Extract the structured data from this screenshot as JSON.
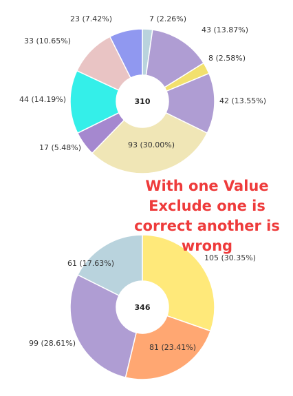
{
  "chart_data": [
    {
      "type": "donut",
      "center_label": "310",
      "slices": [
        {
          "value": 7,
          "label": "7 (2.26%)",
          "color": "#b9d3dd"
        },
        {
          "value": 43,
          "label": "43 (13.87%)",
          "color": "#af9dd3"
        },
        {
          "value": 8,
          "label": "8 (2.58%)",
          "color": "#f2e06d"
        },
        {
          "value": 42,
          "label": "42 (13.55%)",
          "color": "#af9dd3"
        },
        {
          "value": 93,
          "label": "93 (30.00%)",
          "color": "#f0e6b6"
        },
        {
          "value": 17,
          "label": "17 (5.48%)",
          "color": "#a588cf"
        },
        {
          "value": 44,
          "label": "44 (14.19%)",
          "color": "#34efe9"
        },
        {
          "value": 33,
          "label": "33 (10.65%)",
          "color": "#e9c4c4"
        },
        {
          "value": 23,
          "label": "23 (7.42%)",
          "color": "#9098f0"
        }
      ]
    },
    {
      "type": "donut",
      "center_label": "346",
      "slices": [
        {
          "value": 105,
          "label": "105 (30.35%)",
          "color": "#ffe97a"
        },
        {
          "value": 81,
          "label": "81 (23.41%)",
          "color": "#ffa772"
        },
        {
          "value": 99,
          "label": "99 (28.61%)",
          "color": "#af9dd3"
        },
        {
          "value": 61,
          "label": "61 (17.63%)",
          "color": "#b9d3dd"
        }
      ]
    }
  ],
  "annotation": {
    "lines": [
      "With one Value",
      "Exclude one is",
      "correct another is",
      "wrong"
    ]
  }
}
